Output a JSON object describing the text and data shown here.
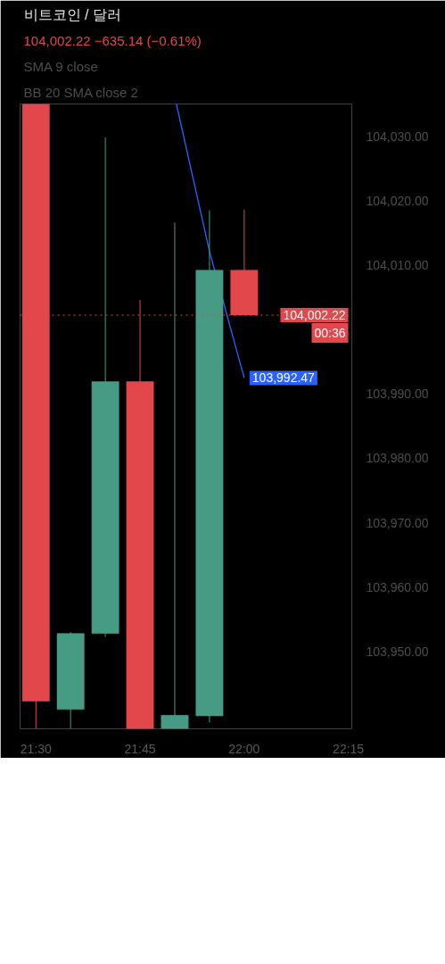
{
  "chart_data": {
    "type": "candlestick",
    "title": "비트코인 / 달러",
    "subtitle": "104,002.22 −635.14 (−0.61%)",
    "x": [
      21.5,
      21.5833,
      21.6667,
      21.75,
      21.8333,
      21.9167,
      22.0
    ],
    "ohlc": [
      [
        104035,
        104035,
        103938,
        103942.3
      ],
      [
        103941,
        103953,
        103938,
        103952.8
      ],
      [
        103952.8,
        104029.8,
        103952.3,
        103991.9
      ],
      [
        103991.9,
        104004.6,
        103938,
        103938
      ],
      [
        103938,
        104016.6,
        103938,
        103940.1
      ],
      [
        103940,
        104018.5,
        103939,
        104009.2
      ],
      [
        104009.2,
        104018.6,
        104002.22,
        104002.22
      ]
    ],
    "colors": [
      "#e2474c",
      "#469b85",
      "#469b85",
      "#e2474c",
      "#469b85",
      "#469b85",
      "#e2474c"
    ],
    "series": [
      {
        "type": "line",
        "color": "#2962ff",
        "x": [
          21.8372,
          21.9167,
          22.0
        ],
        "values": [
          104035,
          104012.1,
          103992.47
        ],
        "value_labels": [
          null,
          null,
          "103,992.47"
        ]
      }
    ],
    "ref_lines": [
      {
        "axis": "y",
        "value": 104002.22,
        "label": "104,002.22",
        "color": "#e2474c",
        "line_style": "dotted"
      }
    ],
    "annotations": [
      "SMA 9 close",
      "BB 20 SMA close 2",
      {
        "text": "00:36",
        "y": 104002.22
      }
    ],
    "xlim": [
      21.462,
      22.2583
    ],
    "xticks": [
      {
        "value": 21.5,
        "label": "21:30"
      },
      {
        "value": 21.75,
        "label": "21:45"
      },
      {
        "value": 22.0,
        "label": "22:00"
      },
      {
        "value": 22.25,
        "label": "22:15"
      }
    ],
    "ylim": [
      103938,
      104035
    ],
    "yticks": [
      {
        "value": 104030,
        "label": "104,030.00"
      },
      {
        "value": 104020,
        "label": "104,020.00"
      },
      {
        "value": 104010,
        "label": "104,010.00"
      },
      {
        "value": 103990,
        "label": "103,990.00"
      },
      {
        "value": 103980,
        "label": "103,980.00"
      },
      {
        "value": 103970,
        "label": "103,970.00"
      },
      {
        "value": 103960,
        "label": "103,960.00"
      },
      {
        "value": 103950,
        "label": "103,950.00"
      }
    ],
    "grid": false
  }
}
